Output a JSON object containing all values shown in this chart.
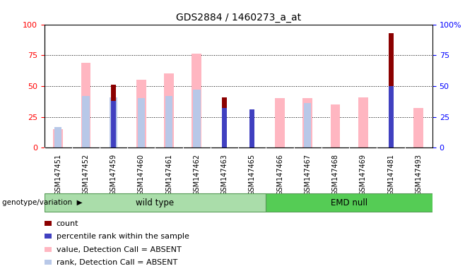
{
  "title": "GDS2884 / 1460273_a_at",
  "samples": [
    "GSM147451",
    "GSM147452",
    "GSM147459",
    "GSM147460",
    "GSM147461",
    "GSM147462",
    "GSM147463",
    "GSM147465",
    "GSM147466",
    "GSM147467",
    "GSM147468",
    "GSM147469",
    "GSM147481",
    "GSM147493"
  ],
  "count": [
    0,
    0,
    51,
    0,
    0,
    0,
    41,
    30,
    0,
    0,
    0,
    0,
    93,
    0
  ],
  "percentile": [
    0,
    0,
    38,
    0,
    0,
    0,
    32,
    31,
    0,
    0,
    0,
    0,
    50,
    0
  ],
  "value_absent": [
    15,
    69,
    0,
    55,
    60,
    76,
    0,
    0,
    40,
    40,
    35,
    41,
    0,
    32
  ],
  "rank_absent": [
    17,
    42,
    41,
    40,
    42,
    47,
    0,
    0,
    0,
    36,
    0,
    0,
    0,
    0
  ],
  "wt_count": 8,
  "color_count": "#8B0000",
  "color_percentile": "#4040C0",
  "color_value_absent": "#FFB6C1",
  "color_rank_absent": "#B8C8E8",
  "color_wildtype_bg": "#AADDAA",
  "color_emdnull_bg": "#55CC55",
  "ylim": [
    0,
    100
  ],
  "background_color": "#ffffff",
  "group_label": "genotype/variation"
}
